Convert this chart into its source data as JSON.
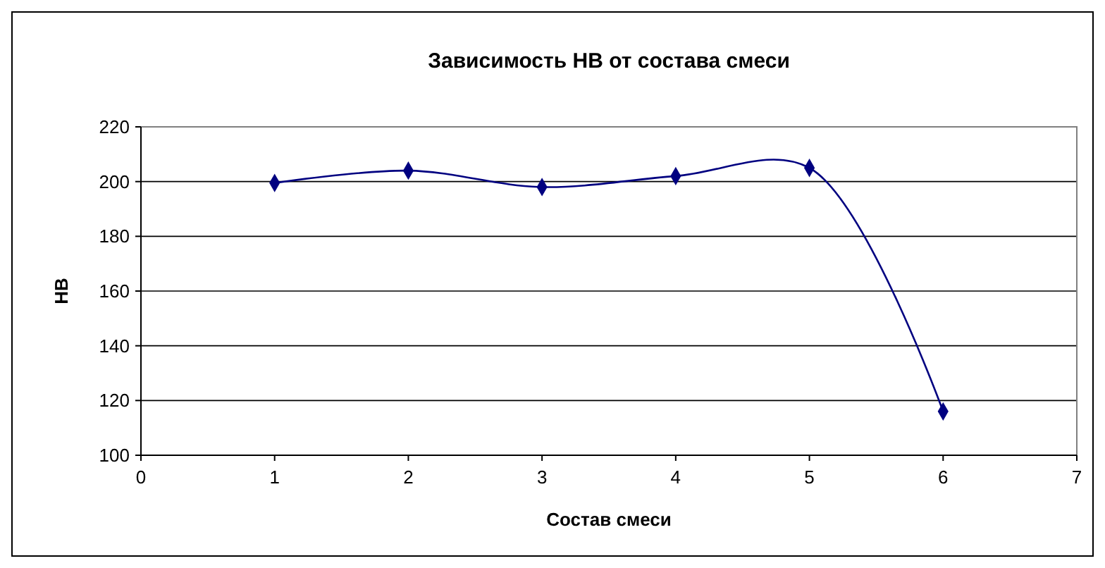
{
  "chart_data": {
    "type": "line",
    "title": "Зависимость HB от состава смеси",
    "xlabel": "Состав смеси",
    "ylabel": "HB",
    "x": [
      1,
      2,
      3,
      4,
      5,
      6
    ],
    "series": [
      {
        "color": "#000080",
        "values": [
          199.5,
          204,
          198,
          202,
          205,
          116
        ]
      }
    ],
    "xlim": [
      0,
      7
    ],
    "xticks": [
      0,
      1,
      2,
      3,
      4,
      5,
      6,
      7
    ],
    "ylim": [
      100,
      220
    ],
    "yticks": [
      100,
      120,
      140,
      160,
      180,
      200,
      220
    ],
    "grid": "y",
    "marker": "diamond",
    "line_style": "solid"
  }
}
